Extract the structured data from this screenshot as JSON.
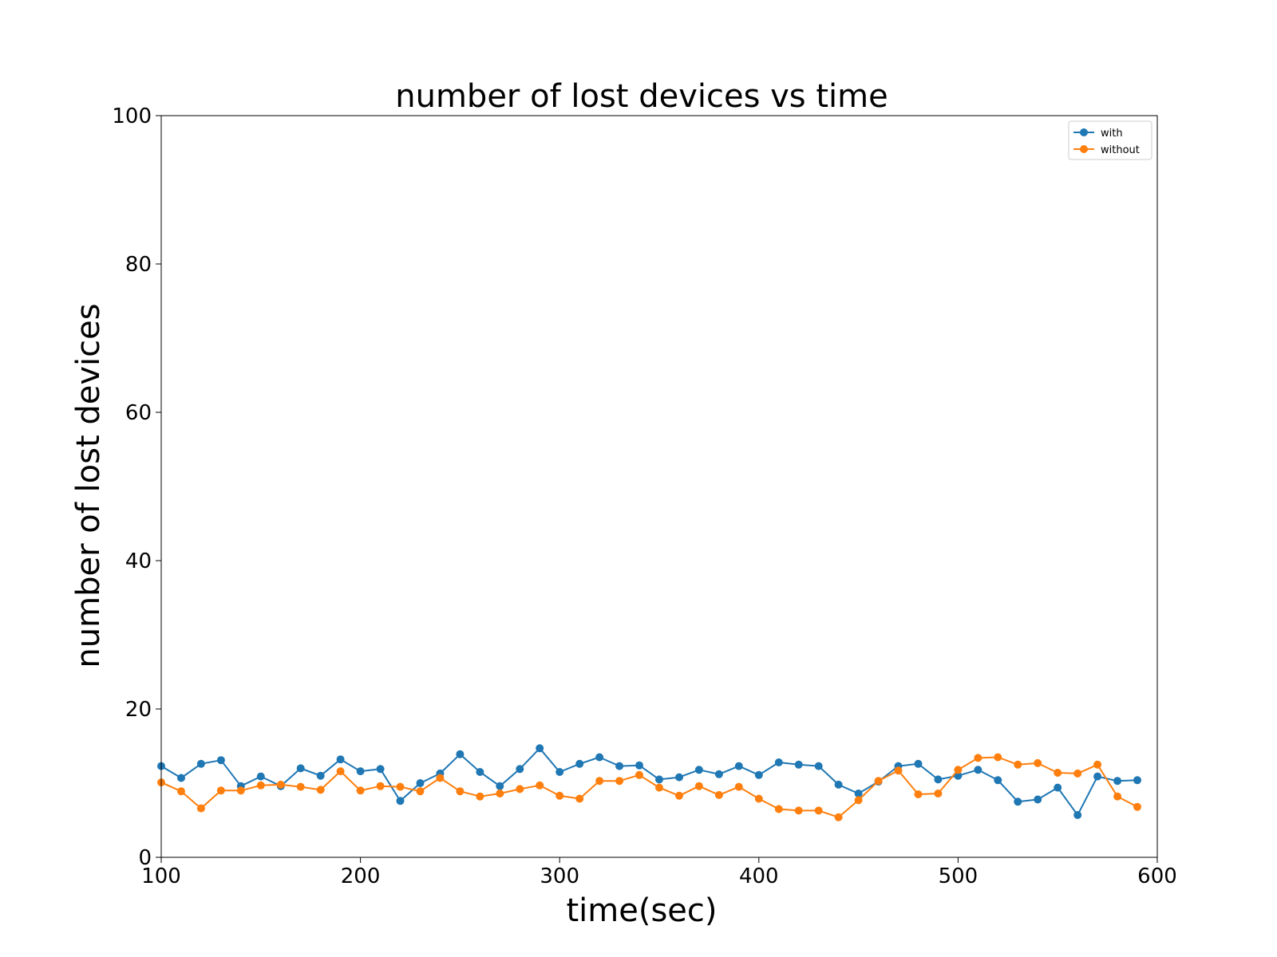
{
  "chart_data": {
    "type": "line",
    "title": "number of lost devices vs time",
    "xlabel": "time(sec)",
    "ylabel": "number of lost devices",
    "xlim": [
      100,
      600
    ],
    "ylim": [
      0,
      100
    ],
    "xticks": [
      100,
      200,
      300,
      400,
      500,
      600
    ],
    "yticks": [
      0,
      20,
      40,
      60,
      80,
      100
    ],
    "grid": false,
    "legend_position": "top-right",
    "x": [
      100,
      110,
      120,
      130,
      140,
      150,
      160,
      170,
      180,
      190,
      200,
      210,
      220,
      230,
      240,
      250,
      260,
      270,
      280,
      290,
      300,
      310,
      320,
      330,
      340,
      350,
      360,
      370,
      380,
      390,
      400,
      410,
      420,
      430,
      440,
      450,
      460,
      470,
      480,
      490,
      500,
      510,
      520,
      530,
      540,
      550,
      560,
      570,
      580,
      590
    ],
    "series": [
      {
        "name": "with",
        "color": "#1f77b4",
        "values": [
          12.3,
          10.7,
          12.6,
          13.1,
          9.6,
          10.9,
          9.6,
          12.0,
          11.0,
          13.2,
          11.6,
          11.9,
          7.6,
          10.0,
          11.3,
          13.9,
          11.5,
          9.6,
          11.9,
          14.7,
          11.5,
          12.6,
          13.5,
          12.3,
          12.4,
          10.5,
          10.8,
          11.8,
          11.2,
          12.3,
          11.1,
          12.8,
          12.5,
          12.3,
          9.8,
          8.6,
          10.2,
          12.3,
          12.6,
          10.5,
          11.0,
          11.8,
          10.4,
          7.5,
          7.8,
          9.4,
          5.7,
          10.9,
          10.3,
          10.4
        ]
      },
      {
        "name": "without",
        "color": "#ff7f0e",
        "values": [
          10.1,
          8.9,
          6.6,
          9.0,
          9.0,
          9.7,
          9.8,
          9.5,
          9.1,
          11.6,
          9.0,
          9.6,
          9.5,
          8.9,
          10.7,
          8.9,
          8.2,
          8.6,
          9.2,
          9.7,
          8.3,
          7.9,
          10.3,
          10.3,
          11.1,
          9.4,
          8.3,
          9.6,
          8.4,
          9.5,
          7.9,
          6.5,
          6.3,
          6.3,
          5.4,
          7.7,
          10.3,
          11.7,
          8.5,
          8.6,
          11.8,
          13.4,
          13.5,
          12.5,
          12.7,
          11.4,
          11.3,
          12.5,
          8.2,
          6.8
        ]
      }
    ]
  }
}
